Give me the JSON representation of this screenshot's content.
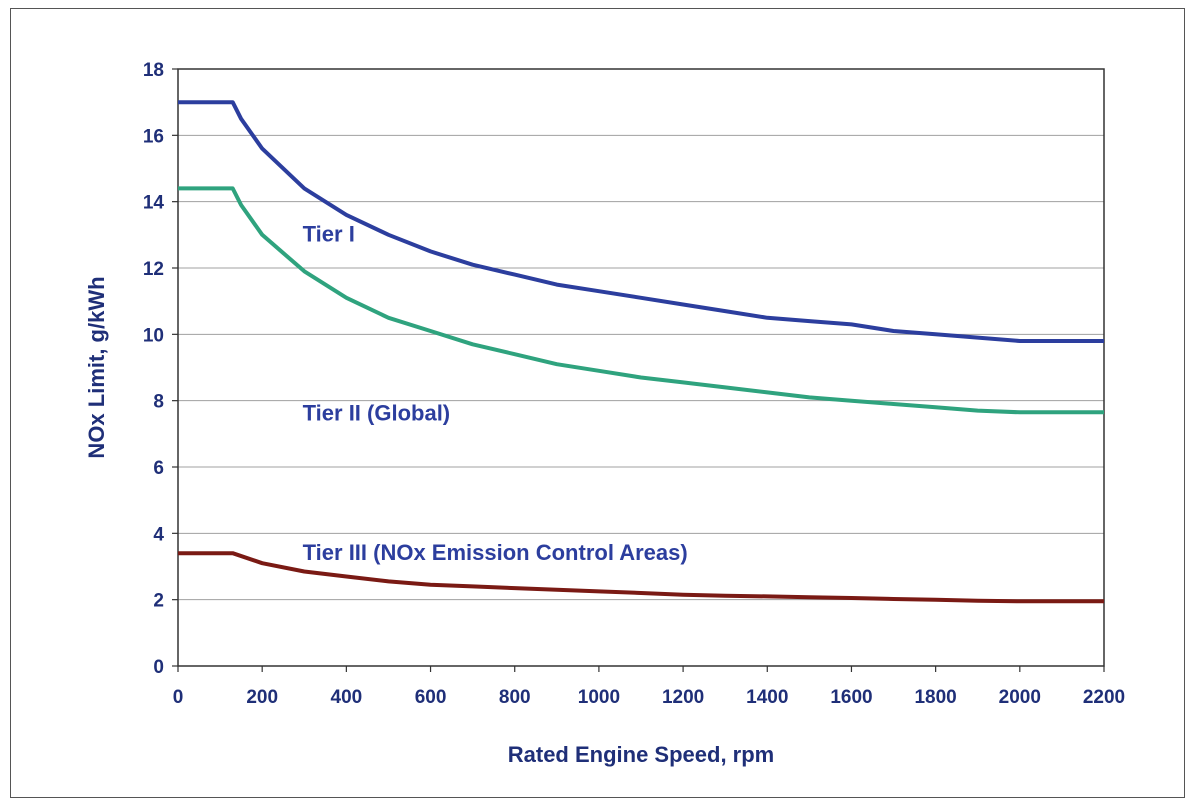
{
  "chart_data": {
    "type": "line",
    "title": "",
    "xlabel": "Rated Engine Speed, rpm",
    "ylabel": "NOx Limit, g/kWh",
    "xlim": [
      0,
      2200
    ],
    "ylim": [
      0,
      18
    ],
    "x_ticks": [
      0,
      200,
      400,
      600,
      800,
      1000,
      1200,
      1400,
      1600,
      1800,
      2000,
      2200
    ],
    "y_ticks": [
      0,
      2,
      4,
      6,
      8,
      10,
      12,
      14,
      16,
      18
    ],
    "grid": {
      "horizontal": true,
      "vertical": false
    },
    "legend": "none",
    "colors": {
      "axis_text": "#1f2f78",
      "gridline": "#a0a0a0",
      "tier1": "#2c3e9e",
      "tier2": "#2fa37e",
      "tier3": "#7a1a14"
    },
    "series": [
      {
        "name": "Tier I",
        "color_key": "tier1",
        "label_at": [
          700,
          12.8
        ],
        "points": [
          [
            0,
            17.0
          ],
          [
            130,
            17.0
          ],
          [
            150,
            16.5
          ],
          [
            200,
            15.6
          ],
          [
            300,
            14.4
          ],
          [
            400,
            13.6
          ],
          [
            500,
            13.0
          ],
          [
            600,
            12.5
          ],
          [
            700,
            12.1
          ],
          [
            800,
            11.8
          ],
          [
            900,
            11.5
          ],
          [
            1000,
            11.3
          ],
          [
            1100,
            11.1
          ],
          [
            1200,
            10.9
          ],
          [
            1300,
            10.7
          ],
          [
            1400,
            10.5
          ],
          [
            1500,
            10.4
          ],
          [
            1600,
            10.3
          ],
          [
            1700,
            10.1
          ],
          [
            1800,
            10.0
          ],
          [
            1900,
            9.9
          ],
          [
            2000,
            9.8
          ],
          [
            2200,
            9.8
          ]
        ]
      },
      {
        "name": "Tier II (Global)",
        "color_key": "tier2",
        "label_at": [
          700,
          7.4
        ],
        "points": [
          [
            0,
            14.4
          ],
          [
            130,
            14.4
          ],
          [
            150,
            13.9
          ],
          [
            200,
            13.0
          ],
          [
            300,
            11.9
          ],
          [
            400,
            11.1
          ],
          [
            500,
            10.5
          ],
          [
            600,
            10.1
          ],
          [
            700,
            9.7
          ],
          [
            800,
            9.4
          ],
          [
            900,
            9.1
          ],
          [
            1000,
            8.9
          ],
          [
            1100,
            8.7
          ],
          [
            1200,
            8.55
          ],
          [
            1300,
            8.4
          ],
          [
            1400,
            8.25
          ],
          [
            1500,
            8.1
          ],
          [
            1600,
            8.0
          ],
          [
            1700,
            7.9
          ],
          [
            1800,
            7.8
          ],
          [
            1900,
            7.7
          ],
          [
            2000,
            7.65
          ],
          [
            2200,
            7.65
          ]
        ]
      },
      {
        "name": "Tier III (NOx Emission Control Areas)",
        "color_key": "tier3",
        "label_at": [
          700,
          3.2
        ],
        "points": [
          [
            0,
            3.4
          ],
          [
            130,
            3.4
          ],
          [
            200,
            3.1
          ],
          [
            300,
            2.85
          ],
          [
            400,
            2.7
          ],
          [
            500,
            2.55
          ],
          [
            600,
            2.45
          ],
          [
            700,
            2.4
          ],
          [
            800,
            2.35
          ],
          [
            900,
            2.3
          ],
          [
            1000,
            2.25
          ],
          [
            1100,
            2.2
          ],
          [
            1200,
            2.15
          ],
          [
            1300,
            2.12
          ],
          [
            1400,
            2.1
          ],
          [
            1500,
            2.07
          ],
          [
            1600,
            2.05
          ],
          [
            1700,
            2.02
          ],
          [
            1800,
            2.0
          ],
          [
            1900,
            1.97
          ],
          [
            2000,
            1.95
          ],
          [
            2200,
            1.95
          ]
        ]
      }
    ]
  }
}
